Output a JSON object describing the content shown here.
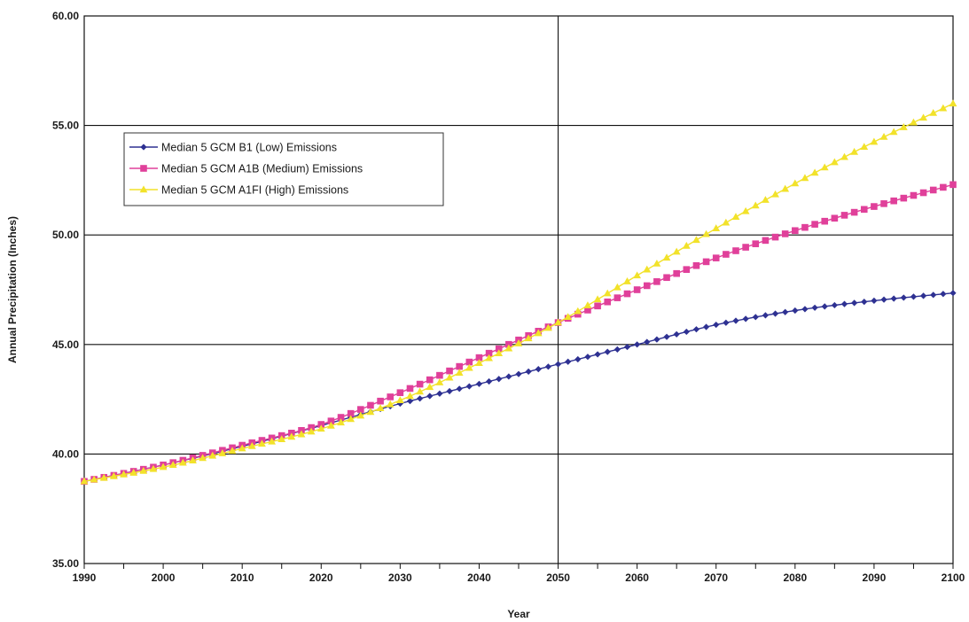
{
  "chart_data": {
    "type": "line",
    "title": "",
    "xlabel": "Year",
    "ylabel": "Annual Precipitation (Inches)",
    "xlim": [
      1990,
      2100
    ],
    "ylim": [
      35,
      60
    ],
    "x_ticks": [
      "1990",
      "2000",
      "2010",
      "2020",
      "2030",
      "2040",
      "2050",
      "2060",
      "2070",
      "2080",
      "2090",
      "2100"
    ],
    "y_ticks": [
      "35.00",
      "40.00",
      "45.00",
      "50.00",
      "55.00",
      "60.00"
    ],
    "grid": {
      "horizontal": true,
      "vertical_at": [
        2050
      ]
    },
    "legend_position": "top-left",
    "x": [
      1990,
      2000,
      2010,
      2020,
      2030,
      2040,
      2050,
      2060,
      2070,
      2080,
      2090,
      2100
    ],
    "series": [
      {
        "name": "Median 5 GCM B1 (Low) Emissions",
        "color": "#2e3192",
        "marker": "diamond",
        "values": [
          38.75,
          39.5,
          40.35,
          41.3,
          42.3,
          43.2,
          44.1,
          45.0,
          45.9,
          46.55,
          47.0,
          47.35
        ]
      },
      {
        "name": "Median 5 GCM A1B (Medium) Emissions",
        "color": "#e0409a",
        "marker": "square",
        "values": [
          38.75,
          39.5,
          40.4,
          41.35,
          42.8,
          44.4,
          46.0,
          47.5,
          48.95,
          50.2,
          51.3,
          52.3
        ]
      },
      {
        "name": "Median 5 GCM A1FI (High) Emissions",
        "color": "#f2e22a",
        "marker": "triangle",
        "values": [
          38.75,
          39.4,
          40.25,
          41.15,
          42.45,
          44.15,
          46.0,
          48.15,
          50.3,
          52.35,
          54.25,
          56.0
        ]
      }
    ]
  }
}
